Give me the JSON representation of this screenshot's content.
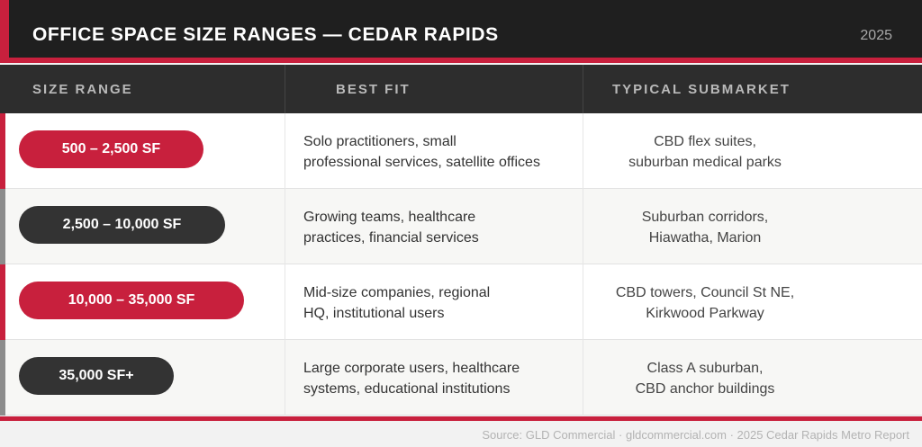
{
  "header": {
    "title": "OFFICE SPACE SIZE RANGES — CEDAR RAPIDS",
    "year": "2025"
  },
  "columns": [
    "SIZE RANGE",
    "BEST FIT",
    "TYPICAL SUBMARKET"
  ],
  "rows": [
    {
      "size": "500 – 2,500 SF",
      "fit_lines": [
        "Solo practitioners, small",
        "professional services, satellite offices"
      ],
      "submarket_lines": [
        "CBD flex suites,",
        "suburban medical parks"
      ]
    },
    {
      "size": "2,500 – 10,000 SF",
      "fit_lines": [
        "Growing teams, healthcare",
        "practices, financial services"
      ],
      "submarket_lines": [
        "Suburban corridors,",
        "Hiawatha, Marion"
      ]
    },
    {
      "size": "10,000 – 35,000 SF",
      "fit_lines": [
        "Mid-size companies, regional",
        "HQ, institutional users"
      ],
      "submarket_lines": [
        "CBD towers, Council St NE,",
        "Kirkwood Parkway"
      ]
    },
    {
      "size": "35,000 SF+",
      "fit_lines": [
        "Large corporate users, healthcare",
        "systems, educational institutions"
      ],
      "submarket_lines": [
        "Class A suburban,",
        "CBD anchor buildings"
      ]
    }
  ],
  "footer": {
    "source": "Source: GLD Commercial · gldcommercial.com · 2025 Cedar Rapids Metro Report"
  },
  "colors": {
    "accent_red": "#c8203d",
    "dark": "#333333",
    "title_bg": "#1f1f1f",
    "accent_gray": "#8c8c8c"
  }
}
